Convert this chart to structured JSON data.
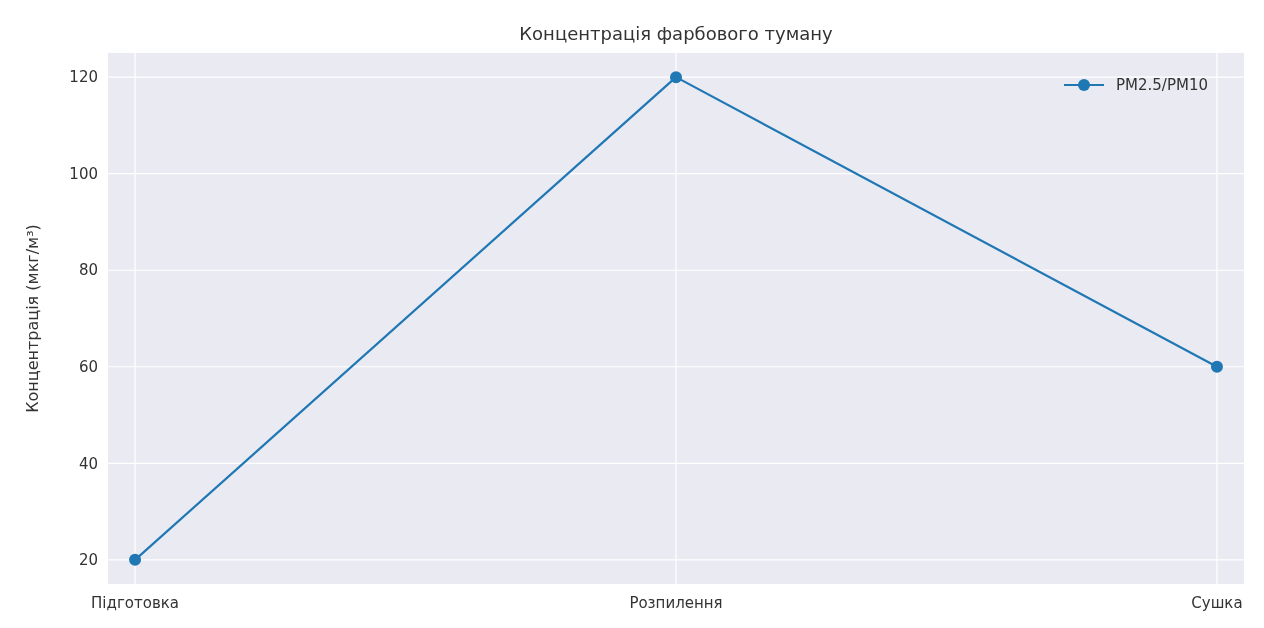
{
  "chart_data": {
    "type": "line",
    "title": "Концентрація фарбового туману",
    "ylabel": "Концентрація (мкг/м³)",
    "categories": [
      "Підготовка",
      "Розпилення",
      "Сушка"
    ],
    "series": [
      {
        "name": "PM2.5/PM10",
        "color": "#1f77b4",
        "values": [
          20,
          120,
          60
        ]
      }
    ],
    "ylim": [
      15,
      125
    ],
    "yticks": [
      20,
      40,
      60,
      80,
      100,
      120
    ],
    "grid": true,
    "legend": "top right",
    "marker": "circle",
    "line_style": "solid"
  }
}
